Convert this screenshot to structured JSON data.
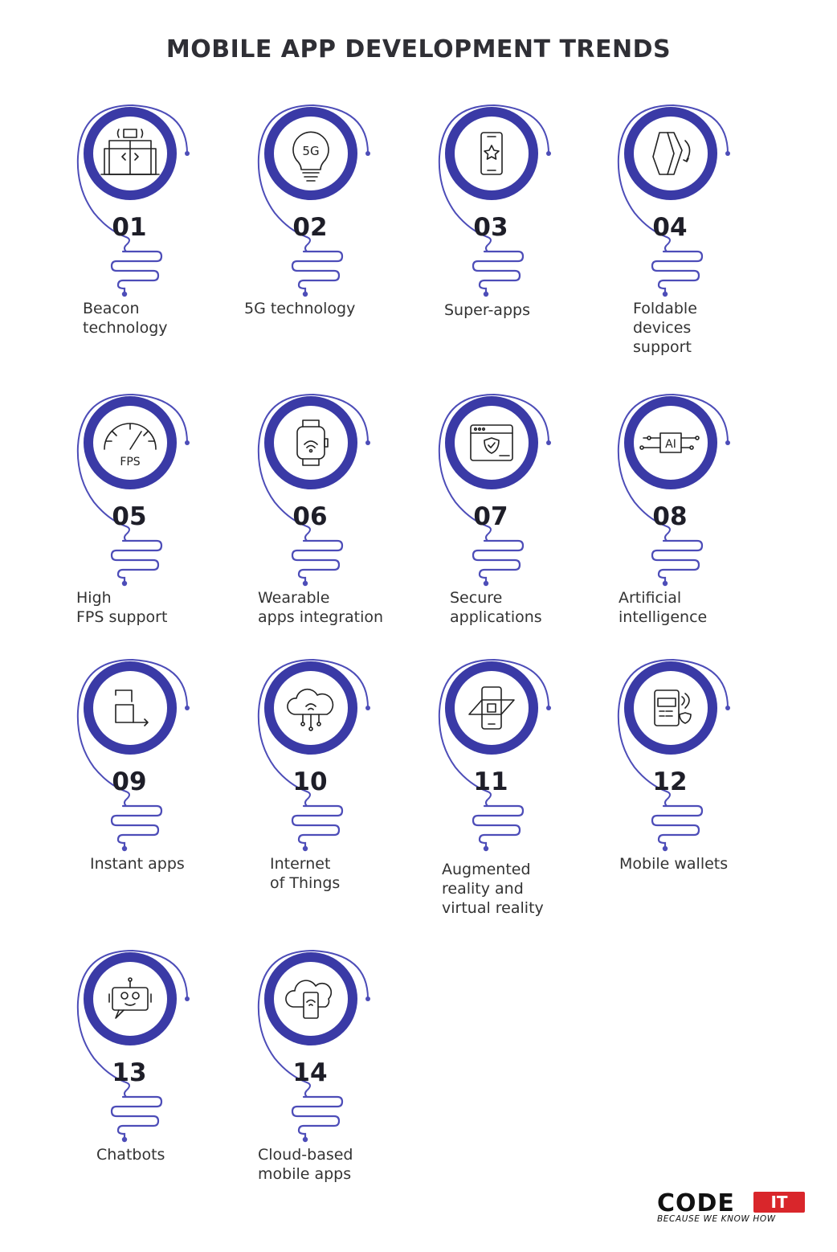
{
  "title": "MOBILE APP DEVELOPMENT TRENDS",
  "colors": {
    "accent": "#3a3aa6",
    "line": "#4d4db8",
    "text": "#2b2b2b",
    "logo_red": "#d9262b"
  },
  "trends": [
    {
      "number": "01",
      "label": "Beacon\ntechnology",
      "icon": "elevator-beacon-icon"
    },
    {
      "number": "02",
      "label": "5G technology",
      "icon": "5g-bulb-icon"
    },
    {
      "number": "03",
      "label": "Super-apps",
      "icon": "phone-star-icon"
    },
    {
      "number": "04",
      "label": "Foldable\ndevices\nsupport",
      "icon": "foldable-phone-icon"
    },
    {
      "number": "05",
      "label": "High\nFPS support",
      "icon": "fps-gauge-icon"
    },
    {
      "number": "06",
      "label": "Wearable\napps integration",
      "icon": "smartwatch-icon"
    },
    {
      "number": "07",
      "label": "Secure\napplications",
      "icon": "browser-shield-icon"
    },
    {
      "number": "08",
      "label": "Artificial\nintelligence",
      "icon": "ai-chip-icon"
    },
    {
      "number": "09",
      "label": "Instant apps",
      "icon": "instant-arrow-icon"
    },
    {
      "number": "10",
      "label": "Internet\nof Things",
      "icon": "cloud-wifi-icon"
    },
    {
      "number": "11",
      "label": "Augmented\nreality and\nvirtual reality",
      "icon": "ar-phone-icon"
    },
    {
      "number": "12",
      "label": "Mobile wallets",
      "icon": "payment-terminal-icon"
    },
    {
      "number": "13",
      "label": "Chatbots",
      "icon": "robot-chat-icon"
    },
    {
      "number": "14",
      "label": "Cloud-based\nmobile apps",
      "icon": "cloud-phone-icon"
    }
  ],
  "logo": {
    "brand": "CODE",
    "suffix": "IT",
    "slogan": "BECAUSE WE KNOW HOW"
  }
}
